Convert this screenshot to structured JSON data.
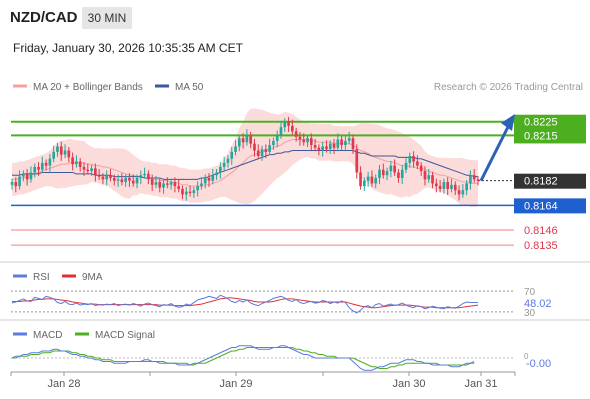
{
  "header": {
    "symbol": "NZD/CAD",
    "timeframe": "30 MIN",
    "datetime": "Friday, January 30, 2026 10:35:35 AM CET",
    "copyright": "Research © 2026 Trading Central"
  },
  "colors": {
    "bullish": "#26a69a",
    "bearish": "#e0384c",
    "resistance": "#4caf20",
    "support": "#1f5fcf",
    "target": "#f08080",
    "ma20": "#f4a0a0",
    "ma50": "#3a5a99",
    "band_fill": "#fbd5d5",
    "rsi": "#5b7be0",
    "rsi_ma": "#e03030",
    "macd": "#5b7be0",
    "macd_signal": "#4caf20",
    "arrow": "#2b62b8"
  },
  "chart_data": [
    {
      "type": "candlestick",
      "panel": "price",
      "legend": [
        "MA 20 + Bollinger Bands",
        "MA 50"
      ],
      "x_ticks": [
        "Jan 28",
        "Jan 29",
        "Jan 30",
        "Jan 31"
      ],
      "ylim": [
        0.813,
        0.8235
      ],
      "levels": [
        {
          "value": 0.8225,
          "label": "0.8225",
          "kind": "resistance"
        },
        {
          "value": 0.8215,
          "label": "0.8215",
          "kind": "resistance"
        },
        {
          "value": 0.8182,
          "label": "0.8182",
          "kind": "last"
        },
        {
          "value": 0.8164,
          "label": "0.8164",
          "kind": "support"
        },
        {
          "value": 0.8146,
          "label": "0.8146",
          "kind": "target"
        },
        {
          "value": 0.8135,
          "label": "0.8135",
          "kind": "target"
        }
      ],
      "close": [
        0.8181,
        0.8178,
        0.8185,
        0.8187,
        0.8183,
        0.8188,
        0.8192,
        0.819,
        0.8195,
        0.8193,
        0.8198,
        0.8203,
        0.8207,
        0.8201,
        0.8204,
        0.8199,
        0.8194,
        0.8196,
        0.8192,
        0.819,
        0.8189,
        0.8191,
        0.8186,
        0.8185,
        0.8183,
        0.8186,
        0.8184,
        0.8182,
        0.8183,
        0.8181,
        0.8184,
        0.8182,
        0.818,
        0.8184,
        0.8186,
        0.8187,
        0.8183,
        0.8179,
        0.8181,
        0.8177,
        0.818,
        0.8179,
        0.8181,
        0.8178,
        0.8176,
        0.8172,
        0.8174,
        0.8173,
        0.8175,
        0.8178,
        0.818,
        0.8184,
        0.8182,
        0.8186,
        0.8188,
        0.8192,
        0.8195,
        0.8198,
        0.8203,
        0.8207,
        0.8213,
        0.821,
        0.8215,
        0.8209,
        0.8204,
        0.82,
        0.8205,
        0.8203,
        0.8208,
        0.8211,
        0.8215,
        0.8221,
        0.8225,
        0.8222,
        0.8218,
        0.8214,
        0.8212,
        0.821,
        0.8213,
        0.8208,
        0.8206,
        0.8204,
        0.8207,
        0.8205,
        0.8209,
        0.8206,
        0.8212,
        0.8208,
        0.8211,
        0.8213,
        0.8205,
        0.8188,
        0.8178,
        0.8182,
        0.8185,
        0.818,
        0.8184,
        0.819,
        0.8186,
        0.8189,
        0.8193,
        0.8188,
        0.8184,
        0.819,
        0.8195,
        0.82,
        0.8196,
        0.8193,
        0.8189,
        0.8183,
        0.8186,
        0.818,
        0.8178,
        0.8176,
        0.8181,
        0.8176,
        0.8179,
        0.8175,
        0.8172,
        0.8175,
        0.818,
        0.8186,
        0.8183,
        0.8182
      ],
      "bollinger": {
        "ma": [
          0.8183,
          0.8183,
          0.8184,
          0.8184,
          0.8185,
          0.8186,
          0.8187,
          0.8188,
          0.8189,
          0.819,
          0.8191,
          0.8192,
          0.8193,
          0.8194,
          0.8194,
          0.8195,
          0.8195,
          0.8195,
          0.8195,
          0.8195,
          0.8194,
          0.8194,
          0.8193,
          0.8193,
          0.8192,
          0.8192,
          0.8191,
          0.819,
          0.8189,
          0.8188,
          0.8187,
          0.8186,
          0.8186,
          0.8185,
          0.8185,
          0.8184,
          0.8184,
          0.8183,
          0.8183,
          0.8182,
          0.8182,
          0.8182,
          0.8181,
          0.8181,
          0.818,
          0.8179,
          0.8179,
          0.8178,
          0.8178,
          0.8178,
          0.8178,
          0.8179,
          0.8179,
          0.818,
          0.8181,
          0.8182,
          0.8184,
          0.8186,
          0.8188,
          0.819,
          0.8193,
          0.8195,
          0.8198,
          0.82,
          0.8201,
          0.8202,
          0.8203,
          0.8204,
          0.8205,
          0.8206,
          0.8207,
          0.8208,
          0.821,
          0.8211,
          0.8212,
          0.8212,
          0.8212,
          0.8212,
          0.8212,
          0.8211,
          0.8211,
          0.821,
          0.821,
          0.821,
          0.821,
          0.8209,
          0.8209,
          0.8209,
          0.8209,
          0.8209,
          0.8208,
          0.8206,
          0.8204,
          0.8203,
          0.8202,
          0.82,
          0.8199,
          0.8198,
          0.8197,
          0.8196,
          0.8196,
          0.8195,
          0.8194,
          0.8193,
          0.8193,
          0.8192,
          0.8192,
          0.8191,
          0.8191,
          0.819,
          0.8189,
          0.8188,
          0.8187,
          0.8186,
          0.8186,
          0.8185,
          0.8184,
          0.8183,
          0.8182,
          0.8181,
          0.8181,
          0.818,
          0.818,
          0.818
        ]
      },
      "ma50": [
        0.8186,
        0.8186,
        0.8186,
        0.8187,
        0.8187,
        0.8187,
        0.8187,
        0.8187,
        0.8188,
        0.8188,
        0.8188,
        0.8188,
        0.8188,
        0.8188,
        0.8188,
        0.8188,
        0.8188,
        0.8187,
        0.8187,
        0.8187,
        0.8187,
        0.8187,
        0.8186,
        0.8186,
        0.8186,
        0.8186,
        0.8186,
        0.8185,
        0.8185,
        0.8185,
        0.8185,
        0.8185,
        0.8185,
        0.8185,
        0.8185,
        0.8184,
        0.8184,
        0.8184,
        0.8184,
        0.8184,
        0.8183,
        0.8183,
        0.8183,
        0.8183,
        0.8183,
        0.8183,
        0.8183,
        0.8183,
        0.8183,
        0.8183,
        0.8184,
        0.8184,
        0.8185,
        0.8186,
        0.8187,
        0.8188,
        0.8189,
        0.819,
        0.8191,
        0.8192,
        0.8193,
        0.8194,
        0.8195,
        0.8196,
        0.8197,
        0.8198,
        0.8199,
        0.82,
        0.8201,
        0.8201,
        0.8202,
        0.8202,
        0.8203,
        0.8203,
        0.8204,
        0.8204,
        0.8204,
        0.8204,
        0.8204,
        0.8204,
        0.8204,
        0.8204,
        0.8204,
        0.8204,
        0.8204,
        0.8204,
        0.8204,
        0.8204,
        0.8204,
        0.8204,
        0.8204,
        0.8203,
        0.8202,
        0.8202,
        0.8201,
        0.82,
        0.82,
        0.82,
        0.82,
        0.82,
        0.82,
        0.82,
        0.8199,
        0.8199,
        0.8199,
        0.8199,
        0.8199,
        0.8198,
        0.8198,
        0.8197,
        0.8196,
        0.8195,
        0.8194,
        0.8193,
        0.8192,
        0.8191,
        0.819,
        0.8189,
        0.8188,
        0.8187,
        0.8186,
        0.8186,
        0.8185,
        0.8185
      ]
    },
    {
      "type": "line",
      "panel": "rsi",
      "legend": [
        "RSI",
        "9MA"
      ],
      "ylim": [
        20,
        80
      ],
      "reference_levels": [
        70,
        30
      ],
      "ticks": [
        "70",
        "30"
      ],
      "last_value_label": "48.02",
      "series": [
        {
          "name": "RSI",
          "values": [
            47,
            49,
            52,
            55,
            51,
            50,
            58,
            56,
            54,
            60,
            58,
            55,
            48,
            46,
            50,
            45,
            44,
            47,
            43,
            45,
            44,
            46,
            42,
            44,
            43,
            45,
            44,
            46,
            42,
            44,
            45,
            43,
            46,
            44,
            41,
            45,
            47,
            44,
            42,
            40,
            44,
            43,
            46,
            41,
            39,
            40,
            45,
            43,
            48,
            53,
            55,
            57,
            60,
            58,
            56,
            62,
            59,
            55,
            50,
            48,
            52,
            49,
            53,
            47,
            44,
            42,
            46,
            49,
            52,
            56,
            58,
            60,
            57,
            52,
            50,
            54,
            48,
            46,
            49,
            50,
            47,
            48,
            52,
            50,
            46,
            49,
            47,
            51,
            48,
            38,
            32,
            28,
            33,
            40,
            42,
            38,
            44,
            46,
            41,
            43,
            45,
            42,
            44,
            47,
            43,
            40,
            38,
            42,
            40,
            36,
            38,
            41,
            39,
            37,
            36,
            40,
            38,
            37,
            41,
            46,
            49,
            48,
            48,
            48
          ]
        },
        {
          "name": "9MA",
          "values": [
            50,
            50,
            50,
            51,
            51,
            52,
            53,
            54,
            54,
            55,
            55,
            55,
            54,
            53,
            52,
            51,
            49,
            48,
            47,
            46,
            45,
            45,
            45,
            44,
            44,
            44,
            44,
            44,
            44,
            44,
            44,
            44,
            44,
            44,
            44,
            44,
            44,
            44,
            44,
            43,
            43,
            43,
            43,
            42,
            42,
            42,
            42,
            42,
            43,
            44,
            45,
            47,
            49,
            51,
            53,
            55,
            56,
            57,
            57,
            56,
            55,
            54,
            53,
            52,
            50,
            49,
            49,
            49,
            49,
            50,
            52,
            54,
            55,
            55,
            55,
            54,
            53,
            52,
            51,
            50,
            49,
            49,
            49,
            49,
            49,
            49,
            49,
            49,
            49,
            47,
            45,
            43,
            41,
            40,
            39,
            38,
            38,
            39,
            40,
            41,
            42,
            43,
            43,
            43,
            43,
            43,
            42,
            41,
            40,
            39,
            39,
            39,
            38,
            38,
            38,
            38,
            38,
            38,
            38,
            39,
            40,
            41,
            42,
            43
          ]
        }
      ]
    },
    {
      "type": "line",
      "panel": "macd",
      "legend": [
        "MACD",
        "MACD Signal"
      ],
      "ylim": [
        -0.0008,
        0.0008
      ],
      "ticks": [
        "0"
      ],
      "last_value_label": "-0.00",
      "series": [
        {
          "name": "MACD",
          "values": [
            0,
            0.0001,
            0.0001,
            0.0002,
            0.0002,
            0.0003,
            0.0003,
            0.0003,
            0.0004,
            0.0004,
            0.0004,
            0.0005,
            0.0005,
            0.0004,
            0.0004,
            0.0003,
            0.0002,
            0.0002,
            0.0001,
            0.0001,
            0,
            0,
            -0.0001,
            -0.0001,
            -0.0002,
            -0.0002,
            -0.0002,
            -0.0003,
            -0.0003,
            -0.0003,
            -0.0003,
            -0.0002,
            -0.0002,
            -0.0002,
            -0.0002,
            -0.0001,
            -0.0001,
            -0.0002,
            -0.0002,
            -0.0003,
            -0.0003,
            -0.0003,
            -0.0003,
            -0.0003,
            -0.0004,
            -0.0004,
            -0.0004,
            -0.0004,
            -0.0003,
            -0.0003,
            -0.0002,
            -0.0001,
            0,
            0.0001,
            0.0002,
            0.0003,
            0.0004,
            0.0005,
            0.0006,
            0.0006,
            0.0007,
            0.0007,
            0.0007,
            0.0007,
            0.0006,
            0.0005,
            0.0005,
            0.0005,
            0.0005,
            0.0006,
            0.0006,
            0.0007,
            0.0007,
            0.0006,
            0.0005,
            0.0004,
            0.0003,
            0.0002,
            0.0002,
            0.0001,
            0,
            0,
            0,
            0,
            0,
            0,
            0,
            0,
            0,
            0,
            -0.0002,
            -0.0004,
            -0.0006,
            -0.0007,
            -0.0007,
            -0.0007,
            -0.0006,
            -0.0005,
            -0.0005,
            -0.0004,
            -0.0003,
            -0.0003,
            -0.0003,
            -0.0002,
            -0.0001,
            -0.0001,
            -0.0001,
            -0.0002,
            -0.0002,
            -0.0003,
            -0.0003,
            -0.0004,
            -0.0004,
            -0.0004,
            -0.0004,
            -0.0004,
            -0.0005,
            -0.0005,
            -0.0005,
            -0.0004,
            -0.0003,
            -0.0003,
            -0.0002
          ]
        },
        {
          "name": "MACD Signal",
          "values": [
            0,
            0,
            0.0001,
            0.0001,
            0.0001,
            0.0002,
            0.0002,
            0.0002,
            0.0003,
            0.0003,
            0.0003,
            0.0004,
            0.0004,
            0.0004,
            0.0004,
            0.0004,
            0.0003,
            0.0003,
            0.0002,
            0.0002,
            0.0001,
            0.0001,
            0,
            0,
            -0.0001,
            -0.0001,
            -0.0001,
            -0.0002,
            -0.0002,
            -0.0002,
            -0.0002,
            -0.0002,
            -0.0002,
            -0.0002,
            -0.0002,
            -0.0002,
            -0.0002,
            -0.0002,
            -0.0002,
            -0.0002,
            -0.0002,
            -0.0003,
            -0.0003,
            -0.0003,
            -0.0003,
            -0.0003,
            -0.0003,
            -0.0004,
            -0.0004,
            -0.0003,
            -0.0003,
            -0.0003,
            -0.0002,
            -0.0001,
            0,
            0.0001,
            0.0002,
            0.0003,
            0.0004,
            0.0004,
            0.0005,
            0.0005,
            0.0006,
            0.0006,
            0.0006,
            0.0006,
            0.0006,
            0.0006,
            0.0006,
            0.0006,
            0.0006,
            0.0006,
            0.0006,
            0.0006,
            0.0006,
            0.0005,
            0.0005,
            0.0004,
            0.0004,
            0.0003,
            0.0003,
            0.0002,
            0.0002,
            0.0001,
            0.0001,
            0.0001,
            0,
            0,
            0,
            0,
            0,
            -0.0001,
            -0.0002,
            -0.0003,
            -0.0004,
            -0.0005,
            -0.0005,
            -0.0006,
            -0.0006,
            -0.0006,
            -0.0005,
            -0.0005,
            -0.0004,
            -0.0004,
            -0.0003,
            -0.0003,
            -0.0003,
            -0.0003,
            -0.0003,
            -0.0003,
            -0.0003,
            -0.0003,
            -0.0003,
            -0.0004,
            -0.0004,
            -0.0004,
            -0.0004,
            -0.0004,
            -0.0004,
            -0.0004,
            -0.0004,
            -0.0003,
            -0.0003
          ]
        }
      ]
    }
  ]
}
